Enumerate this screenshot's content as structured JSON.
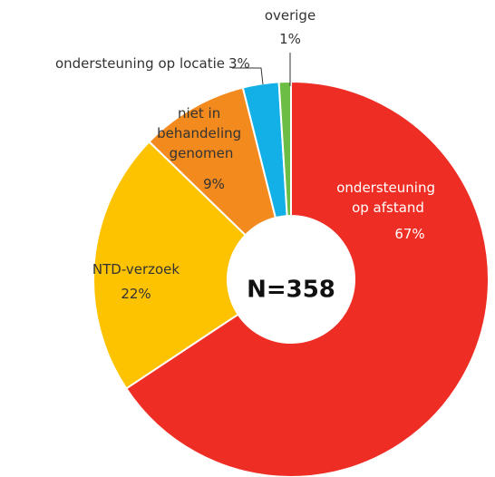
{
  "chart_data": {
    "type": "pie",
    "center_label": "N=358",
    "categories": [
      "ondersteuning op afstand",
      "NTD-verzoek",
      "niet in behandeling genomen",
      "ondersteuning op locatie",
      "overige"
    ],
    "values": [
      67,
      22,
      9,
      3,
      1
    ],
    "value_labels": [
      "67%",
      "22%",
      "9%",
      "3%",
      "1%"
    ],
    "colors": [
      "#ee2d24",
      "#fdc300",
      "#f28a1e",
      "#12b0e6",
      "#6cbd45"
    ]
  }
}
